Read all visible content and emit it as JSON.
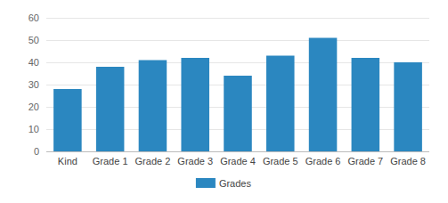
{
  "chart_data": {
    "type": "bar",
    "categories": [
      "Kind",
      "Grade 1",
      "Grade 2",
      "Grade 3",
      "Grade 4",
      "Grade 5",
      "Grade 6",
      "Grade 7",
      "Grade 8"
    ],
    "series": [
      {
        "name": "Grades",
        "color": "#2b87c0",
        "values": [
          28,
          38,
          41,
          42,
          34,
          43,
          51,
          42,
          40
        ]
      }
    ],
    "ylim": [
      0,
      60
    ],
    "yticks": [
      0,
      10,
      20,
      30,
      40,
      50,
      60
    ],
    "grid": true,
    "legend": "bottom"
  }
}
